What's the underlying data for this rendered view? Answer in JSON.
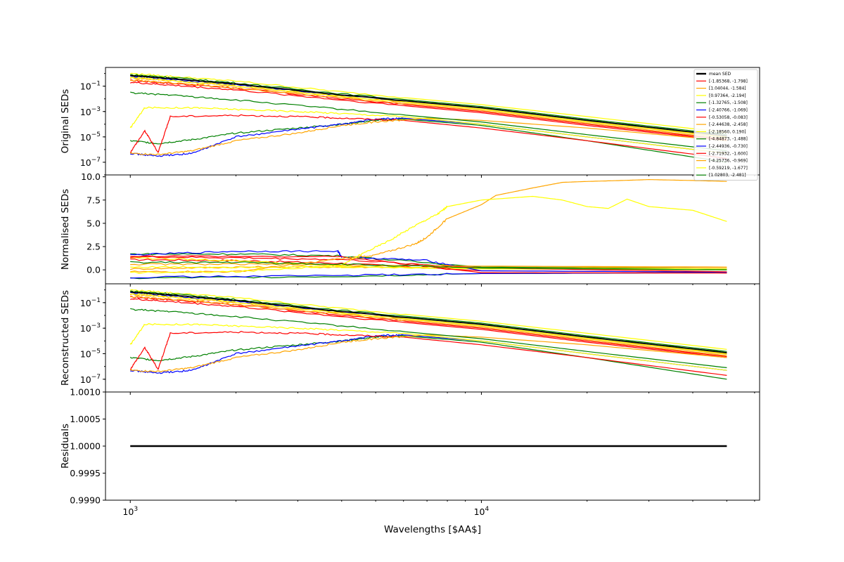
{
  "chart_data": {
    "type": "line",
    "x_scale": "log",
    "xlabel": "Wavelengths [$AA$]",
    "x_range": [
      850,
      62000
    ],
    "x_ticks": [
      {
        "value": 1000,
        "base": "10",
        "exp": "3"
      },
      {
        "value": 10000,
        "base": "10",
        "exp": "4"
      }
    ],
    "panels": [
      {
        "name": "original",
        "ylabel": "Original SEDs",
        "y_scale": "log",
        "ylim": [
          1e-08,
          3
        ],
        "yticks": [
          {
            "value": 0.1,
            "base": "10",
            "exp": "−1"
          },
          {
            "value": 0.001,
            "base": "10",
            "exp": "−3"
          },
          {
            "value": 1e-05,
            "base": "10",
            "exp": "−5"
          },
          {
            "value": 1e-07,
            "base": "10",
            "exp": "−7"
          }
        ],
        "legend_placement": "upper-right"
      },
      {
        "name": "normalised",
        "ylabel": "Normalised SEDs",
        "y_scale": "linear",
        "ylim": [
          -1.5,
          10.2
        ],
        "yticks": [
          {
            "value": 10,
            "label": "10.0"
          },
          {
            "value": 7.5,
            "label": "7.5"
          },
          {
            "value": 5,
            "label": "5.0"
          },
          {
            "value": 2.5,
            "label": "2.5"
          },
          {
            "value": 0,
            "label": "0.0"
          }
        ]
      },
      {
        "name": "reconstructed",
        "ylabel": "Reconstructed SEDs",
        "y_scale": "log",
        "ylim": [
          1e-08,
          3
        ],
        "yticks": [
          {
            "value": 0.1,
            "base": "10",
            "exp": "−1"
          },
          {
            "value": 0.001,
            "base": "10",
            "exp": "−3"
          },
          {
            "value": 1e-05,
            "base": "10",
            "exp": "−5"
          },
          {
            "value": 1e-07,
            "base": "10",
            "exp": "−7"
          }
        ]
      },
      {
        "name": "residuals",
        "ylabel": "Residuals",
        "y_scale": "linear",
        "ylim": [
          0.999,
          1.001
        ],
        "yticks": [
          {
            "value": 1.001,
            "label": "1.0010"
          },
          {
            "value": 1.0005,
            "label": "1.0005"
          },
          {
            "value": 1.0,
            "label": "1.0000"
          },
          {
            "value": 0.9995,
            "label": "0.9995"
          },
          {
            "value": 0.999,
            "label": "0.9990"
          }
        ],
        "series": [
          {
            "values": [
              [
                1000,
                1.0
              ],
              [
                50000,
                1.0
              ]
            ],
            "color": "#000000"
          }
        ]
      }
    ],
    "mean_sed": {
      "name": "mean SED",
      "color": "#000000",
      "original": [
        [
          1000,
          0.7
        ],
        [
          1300,
          0.4
        ],
        [
          2000,
          0.15
        ],
        [
          4000,
          0.02
        ],
        [
          10000,
          0.002
        ],
        [
          20000,
          0.0002
        ],
        [
          50000,
          1.2e-05
        ]
      ],
      "normalised": [
        [
          1000,
          1.0
        ],
        [
          50000,
          1.0
        ]
      ]
    },
    "series": [
      {
        "name": "[-1.85368, -1.798]",
        "color": "#ff0000",
        "original": [
          [
            1000,
            0.28
          ],
          [
            1300,
            0.17
          ],
          [
            2000,
            0.07
          ],
          [
            4000,
            0.01
          ],
          [
            10000,
            0.001
          ],
          [
            20000,
            0.0001
          ],
          [
            50000,
            6e-06
          ]
        ],
        "normalised": [
          [
            1000,
            1.1
          ],
          [
            2000,
            1.0
          ],
          [
            4000,
            0.7
          ],
          [
            10000,
            -0.1
          ],
          [
            50000,
            -0.25
          ]
        ]
      },
      {
        "name": "[1.04044, -1.584]",
        "color": "#ffa500",
        "original": [
          [
            1000,
            0.45
          ],
          [
            1300,
            0.28
          ],
          [
            2000,
            0.1
          ],
          [
            4000,
            0.015
          ],
          [
            10000,
            0.0015
          ],
          [
            20000,
            0.00015
          ],
          [
            50000,
            9e-06
          ]
        ],
        "normalised": [
          [
            1000,
            0.1
          ],
          [
            2000,
            0.3
          ],
          [
            4000,
            0.3
          ],
          [
            10000,
            0.3
          ],
          [
            50000,
            0.25
          ]
        ]
      },
      {
        "name": "[0.97364, -2.194]",
        "color": "#ffff00",
        "original": [
          [
            1000,
            1.0
          ],
          [
            1300,
            0.6
          ],
          [
            2000,
            0.25
          ],
          [
            4000,
            0.035
          ],
          [
            10000,
            0.0035
          ],
          [
            20000,
            0.0004
          ],
          [
            50000,
            2.2e-05
          ]
        ],
        "normalised": [
          [
            1000,
            1.3
          ],
          [
            2000,
            1.0
          ],
          [
            4000,
            0.4
          ],
          [
            10000,
            0.1
          ],
          [
            50000,
            0.0
          ]
        ]
      },
      {
        "name": "[-1.32765, -1.508]",
        "color": "#008000",
        "original": [
          [
            1000,
            0.8
          ],
          [
            1300,
            0.5
          ],
          [
            2000,
            0.18
          ],
          [
            4000,
            0.025
          ],
          [
            10000,
            0.0025
          ],
          [
            20000,
            0.00025
          ],
          [
            50000,
            1.5e-05
          ]
        ],
        "normalised": [
          [
            1000,
            1.7
          ],
          [
            2000,
            1.7
          ],
          [
            4000,
            1.5
          ],
          [
            10000,
            0.3
          ],
          [
            50000,
            0.1
          ]
        ]
      },
      {
        "name": "[-2.40766, -1.069]",
        "color": "#0000ff",
        "original": [
          [
            1000,
            0.6
          ],
          [
            1300,
            0.35
          ],
          [
            2000,
            0.13
          ],
          [
            4000,
            0.02
          ],
          [
            10000,
            0.002
          ],
          [
            20000,
            0.0002
          ],
          [
            50000,
            1.2e-05
          ]
        ],
        "normalised": [
          [
            1000,
            1.6
          ],
          [
            2000,
            2.0
          ],
          [
            3900,
            2.0
          ],
          [
            4000,
            1.4
          ],
          [
            7000,
            1.0
          ],
          [
            10000,
            -0.1
          ],
          [
            50000,
            -0.25
          ]
        ]
      },
      {
        "name": "[-0.53058, -0.083]",
        "color": "#ff0000",
        "original": [
          [
            1000,
            0.2
          ],
          [
            1300,
            0.12
          ],
          [
            2000,
            0.05
          ],
          [
            4000,
            0.008
          ],
          [
            10000,
            0.0008
          ],
          [
            20000,
            8e-05
          ],
          [
            50000,
            5e-06
          ]
        ],
        "normalised": [
          [
            1000,
            1.4
          ],
          [
            2000,
            1.3
          ],
          [
            4000,
            1.1
          ],
          [
            10000,
            0.2
          ],
          [
            50000,
            -0.2
          ]
        ]
      },
      {
        "name": "[-2.44638, -2.458]",
        "color": "#ffa500",
        "original": [
          [
            1000,
            0.3
          ],
          [
            1300,
            0.18
          ],
          [
            2000,
            0.07
          ],
          [
            4000,
            0.012
          ],
          [
            10000,
            0.0012
          ],
          [
            20000,
            0.00012
          ],
          [
            50000,
            7e-06
          ]
        ],
        "normalised": [
          [
            1000,
            0.6
          ],
          [
            2000,
            0.6
          ],
          [
            4000,
            0.5
          ],
          [
            10000,
            0.4
          ],
          [
            50000,
            0.3
          ]
        ]
      },
      {
        "name": "[-2.18560, 0.190]",
        "color": "#ffff00",
        "original": [
          [
            1000,
            0.5
          ],
          [
            1300,
            0.3
          ],
          [
            2000,
            0.11
          ],
          [
            4000,
            0.016
          ],
          [
            10000,
            0.0016
          ],
          [
            20000,
            0.00016
          ],
          [
            50000,
            1e-05
          ]
        ],
        "normalised": [
          [
            1000,
            0.3
          ],
          [
            2000,
            0.3
          ],
          [
            4000,
            0.3
          ],
          [
            10000,
            0.2
          ],
          [
            50000,
            0.1
          ]
        ]
      },
      {
        "name": "[-4.84873, -1.488]",
        "color": "#008000",
        "original": [
          [
            1000,
            5e-06
          ],
          [
            1200,
            3e-06
          ],
          [
            1500,
            6e-06
          ],
          [
            2000,
            2e-05
          ],
          [
            3000,
            5e-05
          ],
          [
            4000,
            0.0001
          ],
          [
            5000,
            0.0002
          ],
          [
            6000,
            0.00025
          ],
          [
            10000,
            8e-05
          ],
          [
            20000,
            5e-06
          ],
          [
            50000,
            1e-07
          ]
        ],
        "normalised": [
          [
            1000,
            -0.9
          ],
          [
            4000,
            -0.7
          ],
          [
            10000,
            -0.4
          ],
          [
            50000,
            -0.3
          ]
        ]
      },
      {
        "name": "[-2.44936, -0.730]",
        "color": "#0000ff",
        "original": [
          [
            1000,
            5e-07
          ],
          [
            1200,
            3e-07
          ],
          [
            1500,
            5e-07
          ],
          [
            2000,
            1e-05
          ],
          [
            3000,
            4e-05
          ],
          [
            4000,
            0.0001
          ],
          [
            5000,
            0.00025
          ],
          [
            6000,
            0.0003
          ],
          [
            10000,
            0.0001
          ],
          [
            20000,
            1e-05
          ],
          [
            50000,
            5e-07
          ]
        ],
        "normalised": [
          [
            1000,
            -0.8
          ],
          [
            4000,
            -0.6
          ],
          [
            10000,
            -0.4
          ],
          [
            50000,
            -0.3
          ]
        ]
      },
      {
        "name": "[-2.71932, -1.600]",
        "color": "#ff0000",
        "original": [
          [
            1000,
            6e-07
          ],
          [
            1100,
            3e-05
          ],
          [
            1200,
            6e-07
          ],
          [
            1300,
            0.0004
          ],
          [
            2000,
            0.0005
          ],
          [
            3000,
            0.0004
          ],
          [
            4000,
            0.0003
          ],
          [
            6000,
            0.0002
          ],
          [
            10000,
            5e-05
          ],
          [
            20000,
            5e-06
          ],
          [
            50000,
            2e-07
          ]
        ],
        "normalised": [
          [
            1000,
            1.5
          ],
          [
            4000,
            1.4
          ],
          [
            10000,
            -0.3
          ],
          [
            50000,
            -0.35
          ]
        ]
      },
      {
        "name": "[-4.25736, -0.969]",
        "color": "#ffa500",
        "original": [
          [
            1000,
            5e-07
          ],
          [
            1200,
            4e-07
          ],
          [
            1500,
            8e-07
          ],
          [
            2000,
            5e-06
          ],
          [
            3000,
            2e-05
          ],
          [
            4000,
            8e-05
          ],
          [
            5000,
            0.00015
          ],
          [
            7000,
            0.0003
          ],
          [
            10000,
            0.0002
          ],
          [
            20000,
            5e-05
          ],
          [
            50000,
            5e-06
          ]
        ],
        "normalised": [
          [
            1000,
            -0.2
          ],
          [
            2000,
            -0.2
          ],
          [
            4000,
            1.2
          ],
          [
            5000,
            1.6
          ],
          [
            6500,
            2.8
          ],
          [
            7000,
            3.5
          ],
          [
            8000,
            5.5
          ],
          [
            10000,
            7.0
          ],
          [
            11000,
            8.0
          ],
          [
            14000,
            8.8
          ],
          [
            17000,
            9.4
          ],
          [
            20000,
            9.5
          ],
          [
            25000,
            9.6
          ],
          [
            30000,
            9.7
          ],
          [
            40000,
            9.6
          ],
          [
            50000,
            9.5
          ]
        ]
      },
      {
        "name": "[-0.59219, -1.677]",
        "color": "#ffff00",
        "original": [
          [
            1000,
            5e-05
          ],
          [
            1100,
            0.002
          ],
          [
            1500,
            0.002
          ],
          [
            2000,
            0.0015
          ],
          [
            3000,
            0.001
          ],
          [
            4000,
            0.0007
          ],
          [
            6000,
            0.0004
          ],
          [
            10000,
            0.0001
          ],
          [
            20000,
            1e-05
          ],
          [
            50000,
            5e-07
          ]
        ],
        "normalised": [
          [
            1000,
            -0.3
          ],
          [
            2000,
            -0.2
          ],
          [
            4000,
            0.5
          ],
          [
            4500,
            1.6
          ],
          [
            5500,
            3.2
          ],
          [
            6500,
            4.8
          ],
          [
            7500,
            6.0
          ],
          [
            8000,
            6.8
          ],
          [
            10000,
            7.5
          ],
          [
            14000,
            7.9
          ],
          [
            17000,
            7.5
          ],
          [
            20000,
            6.8
          ],
          [
            23000,
            6.6
          ],
          [
            26000,
            7.6
          ],
          [
            30000,
            6.8
          ],
          [
            40000,
            6.4
          ],
          [
            50000,
            5.2
          ]
        ]
      },
      {
        "name": "[1.02803, -2.481]",
        "color": "#008000",
        "original": [
          [
            1000,
            0.03
          ],
          [
            1300,
            0.02
          ],
          [
            2000,
            0.008
          ],
          [
            4000,
            0.0015
          ],
          [
            10000,
            0.00015
          ],
          [
            20000,
            1.5e-05
          ],
          [
            50000,
            8e-07
          ]
        ],
        "normalised": [
          [
            1000,
            0.8
          ],
          [
            2000,
            0.8
          ],
          [
            4000,
            0.6
          ],
          [
            10000,
            0.2
          ],
          [
            50000,
            0.0
          ]
        ]
      }
    ]
  }
}
